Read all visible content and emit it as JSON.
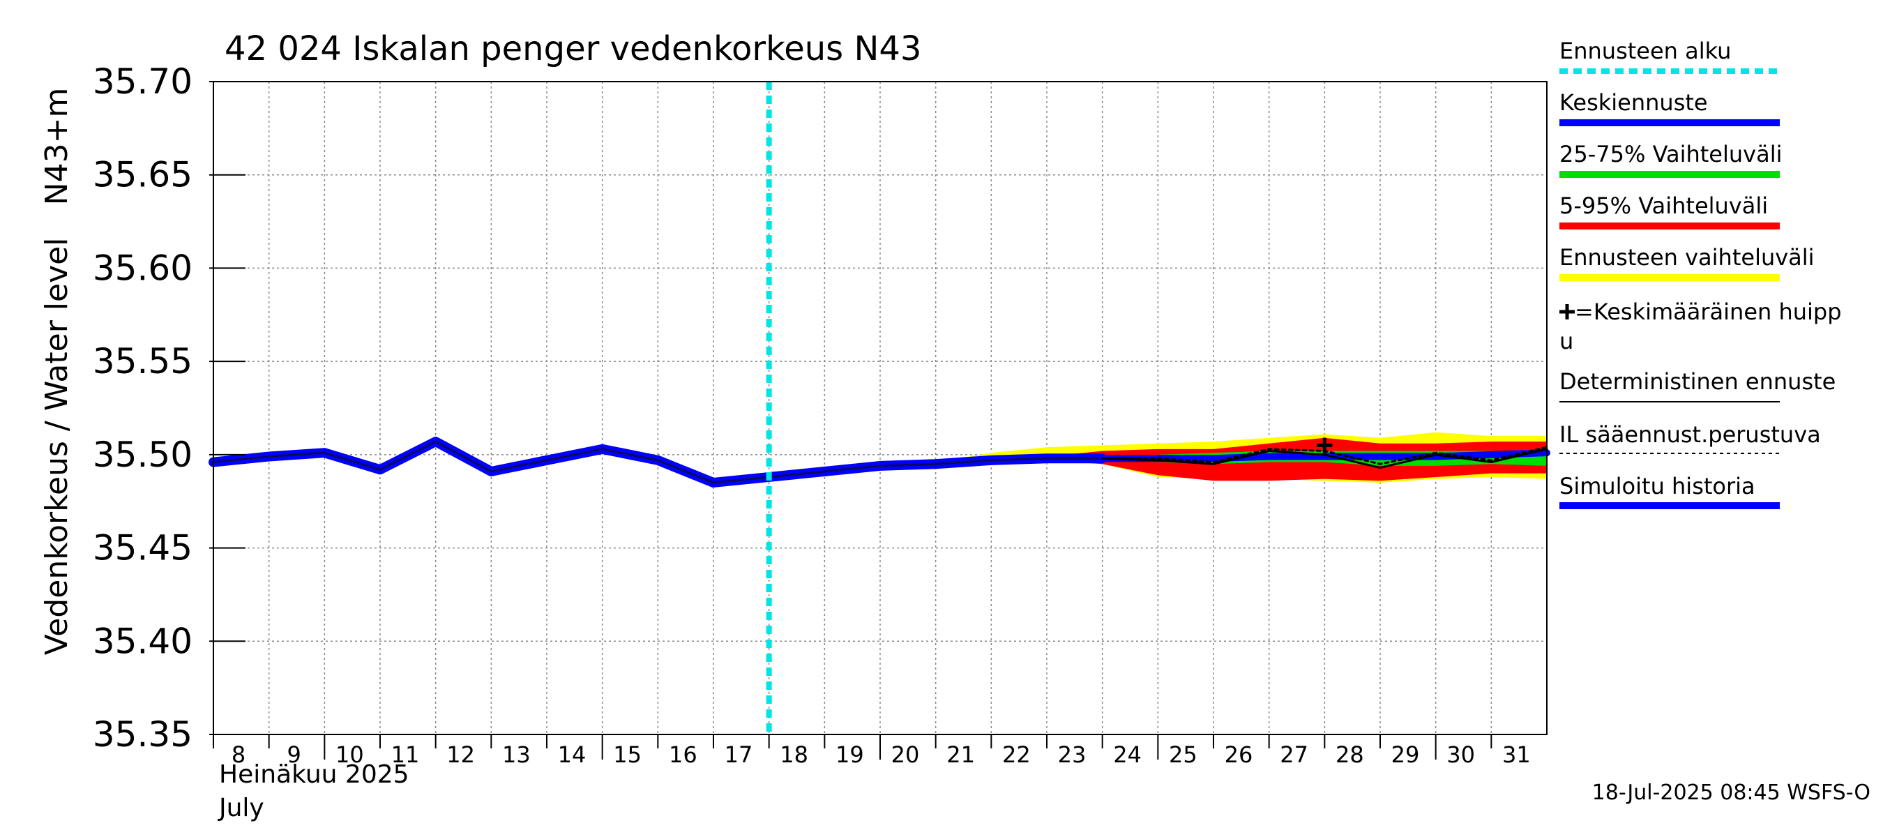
{
  "chart_data": {
    "type": "line",
    "title": "42 024 Iskalan penger vedenkorkeus N43",
    "ylabel_left": "Vedenkorkeus / Water level",
    "ylabel_right": "N43+m",
    "ylim": [
      35.35,
      35.7
    ],
    "yticks": [
      "35.70",
      "35.65",
      "35.60",
      "35.55",
      "35.50",
      "35.45",
      "35.40",
      "35.35"
    ],
    "xlim": [
      8,
      32
    ],
    "xticks": [
      "8",
      "9",
      "10",
      "11",
      "12",
      "13",
      "14",
      "15",
      "16",
      "17",
      "18",
      "19",
      "20",
      "21",
      "22",
      "23",
      "24",
      "25",
      "26",
      "27",
      "28",
      "29",
      "30",
      "31"
    ],
    "xlabel_month_fi": "Heinäkuu  2025",
    "xlabel_month_en": "July",
    "forecast_start_day": 18.0,
    "simulated_history": {
      "x": [
        8,
        9,
        10,
        11,
        12,
        13,
        14,
        15,
        16,
        17,
        18,
        19,
        20,
        21,
        22,
        23,
        24
      ],
      "y": [
        35.496,
        35.499,
        35.501,
        35.492,
        35.507,
        35.491,
        35.497,
        35.503,
        35.497,
        35.485,
        35.488,
        35.491,
        35.494,
        35.495,
        35.497,
        35.498,
        35.498
      ]
    },
    "mean_forecast": {
      "x": [
        24,
        25,
        26,
        27,
        28,
        29,
        30,
        31,
        32
      ],
      "y": [
        35.498,
        35.498,
        35.498,
        35.499,
        35.499,
        35.499,
        35.499,
        35.5,
        35.501
      ]
    },
    "band_25_75": {
      "x": [
        24,
        25,
        26,
        27,
        28,
        29,
        30,
        31,
        32
      ],
      "low": [
        35.497,
        35.496,
        35.495,
        35.496,
        35.496,
        35.494,
        35.494,
        35.495,
        35.494
      ],
      "high": [
        35.499,
        35.5,
        35.501,
        35.502,
        35.502,
        35.502,
        35.502,
        35.502,
        35.502
      ]
    },
    "band_5_95": {
      "x": [
        23,
        24,
        25,
        26,
        27,
        28,
        29,
        30,
        31,
        32
      ],
      "low": [
        35.497,
        35.495,
        35.489,
        35.486,
        35.486,
        35.487,
        35.486,
        35.488,
        35.49,
        35.49
      ],
      "high": [
        35.499,
        35.502,
        35.503,
        35.503,
        35.506,
        35.509,
        35.506,
        35.506,
        35.507,
        35.507
      ]
    },
    "band_full": {
      "x": [
        21,
        22,
        23,
        24,
        25,
        26,
        27,
        28,
        29,
        30,
        31,
        32
      ],
      "low": [
        35.495,
        35.497,
        35.498,
        35.495,
        35.488,
        35.487,
        35.487,
        35.486,
        35.485,
        35.487,
        35.488,
        35.487
      ],
      "high": [
        35.496,
        35.501,
        35.504,
        35.505,
        35.506,
        35.507,
        35.509,
        35.511,
        35.509,
        35.512,
        35.51,
        35.51
      ]
    },
    "deterministic_forecast": {
      "x": [
        24,
        25,
        26,
        27,
        28,
        29,
        30,
        31,
        32
      ],
      "y": [
        35.498,
        35.497,
        35.495,
        35.502,
        35.5,
        35.493,
        35.5,
        35.496,
        35.503
      ]
    },
    "il_forecast": {
      "x": [
        24,
        25,
        26,
        27,
        28,
        29,
        30,
        31,
        32
      ],
      "y": [
        35.498,
        35.498,
        35.496,
        35.503,
        35.502,
        35.495,
        35.501,
        35.497,
        35.504
      ]
    },
    "mean_peak": {
      "x": 28,
      "y": 35.505
    },
    "legend": [
      {
        "label": "Ennusteen alku",
        "color": "#00e5e5",
        "style": "dotted"
      },
      {
        "label": "Keskiennuste",
        "color": "#0000ff",
        "style": "solid"
      },
      {
        "label": "25-75% Vaihteluväli",
        "color": "#00dd00",
        "style": "solid"
      },
      {
        "label": "5-95% Vaihteluväli",
        "color": "#ff0000",
        "style": "solid"
      },
      {
        "label": "Ennusteen vaihteluväli",
        "color": "#ffff00",
        "style": "solid"
      },
      {
        "label": "=Keskimääräinen huipp",
        "label2": "u",
        "color": "#000000",
        "style": "marker"
      },
      {
        "label": "Deterministinen ennuste",
        "color": "#000000",
        "style": "thin"
      },
      {
        "label": "IL sääennust.perustuva",
        "color": "#000000",
        "style": "dashed"
      },
      {
        "label": "Simuloitu historia",
        "color": "#0000ff",
        "style": "solid"
      }
    ],
    "footer": "18-Jul-2025 08:45 WSFS-O"
  }
}
